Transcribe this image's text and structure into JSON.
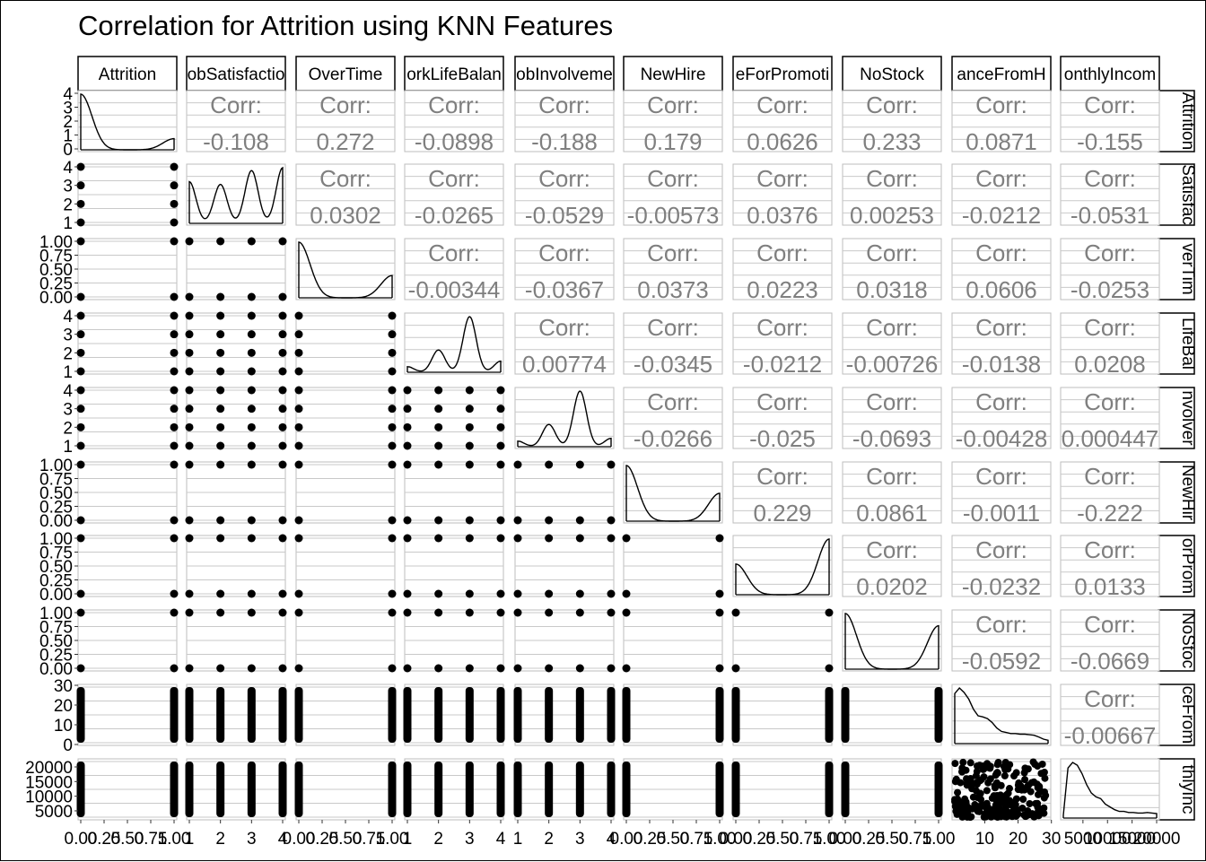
{
  "chart_data": {
    "type": "scatter",
    "title": "Correlation for Attrition using KNN Features",
    "variables": [
      "Attrition",
      "JobSatisfaction",
      "OverTime",
      "WorkLifeBalance",
      "JobInvolvement",
      "NewHire",
      "YearsSinceLastPromotion",
      "NoStock",
      "DistanceFromHome",
      "MonthlyIncome"
    ],
    "strip_labels_top": [
      "Attrition",
      "obSatisfactio",
      "OverTime",
      "orkLifeBalan",
      "obInvolveme",
      "NewHire",
      "eForPromoti",
      "NoStock",
      "anceFromH",
      "onthlyIncom"
    ],
    "strip_labels_right": [
      "Attrition",
      "Satisfac",
      "verTim",
      "LifeBal",
      "nvolver",
      "NewHir",
      "orProm",
      "NoStoc",
      "ceFrom",
      "thlyInc"
    ],
    "corr_label": "Corr:",
    "correlations": [
      {
        "row": 0,
        "col": 1,
        "value": "-0.108"
      },
      {
        "row": 0,
        "col": 2,
        "value": "0.272"
      },
      {
        "row": 0,
        "col": 3,
        "value": "-0.0898"
      },
      {
        "row": 0,
        "col": 4,
        "value": "-0.188"
      },
      {
        "row": 0,
        "col": 5,
        "value": "0.179"
      },
      {
        "row": 0,
        "col": 6,
        "value": "0.0626"
      },
      {
        "row": 0,
        "col": 7,
        "value": "0.233"
      },
      {
        "row": 0,
        "col": 8,
        "value": "0.0871"
      },
      {
        "row": 0,
        "col": 9,
        "value": "-0.155"
      },
      {
        "row": 1,
        "col": 2,
        "value": "0.0302"
      },
      {
        "row": 1,
        "col": 3,
        "value": "-0.0265"
      },
      {
        "row": 1,
        "col": 4,
        "value": "-0.0529"
      },
      {
        "row": 1,
        "col": 5,
        "value": "-0.00573"
      },
      {
        "row": 1,
        "col": 6,
        "value": "0.0376"
      },
      {
        "row": 1,
        "col": 7,
        "value": "0.00253"
      },
      {
        "row": 1,
        "col": 8,
        "value": "-0.0212"
      },
      {
        "row": 1,
        "col": 9,
        "value": "-0.0531"
      },
      {
        "row": 2,
        "col": 3,
        "value": "-0.00344"
      },
      {
        "row": 2,
        "col": 4,
        "value": "-0.0367"
      },
      {
        "row": 2,
        "col": 5,
        "value": "0.0373"
      },
      {
        "row": 2,
        "col": 6,
        "value": "0.0223"
      },
      {
        "row": 2,
        "col": 7,
        "value": "0.0318"
      },
      {
        "row": 2,
        "col": 8,
        "value": "0.0606"
      },
      {
        "row": 2,
        "col": 9,
        "value": "-0.0253"
      },
      {
        "row": 3,
        "col": 4,
        "value": "0.00774"
      },
      {
        "row": 3,
        "col": 5,
        "value": "-0.0345"
      },
      {
        "row": 3,
        "col": 6,
        "value": "-0.0212"
      },
      {
        "row": 3,
        "col": 7,
        "value": "-0.00726"
      },
      {
        "row": 3,
        "col": 8,
        "value": "-0.0138"
      },
      {
        "row": 3,
        "col": 9,
        "value": "0.0208"
      },
      {
        "row": 4,
        "col": 5,
        "value": "-0.0266"
      },
      {
        "row": 4,
        "col": 6,
        "value": "-0.025"
      },
      {
        "row": 4,
        "col": 7,
        "value": "-0.0693"
      },
      {
        "row": 4,
        "col": 8,
        "value": "-0.00428"
      },
      {
        "row": 4,
        "col": 9,
        "value": "0.000447"
      },
      {
        "row": 5,
        "col": 6,
        "value": "0.229"
      },
      {
        "row": 5,
        "col": 7,
        "value": "0.0861"
      },
      {
        "row": 5,
        "col": 8,
        "value": "-0.0011"
      },
      {
        "row": 5,
        "col": 9,
        "value": "-0.222"
      },
      {
        "row": 6,
        "col": 7,
        "value": "0.0202"
      },
      {
        "row": 6,
        "col": 8,
        "value": "-0.0232"
      },
      {
        "row": 6,
        "col": 9,
        "value": "0.0133"
      },
      {
        "row": 7,
        "col": 8,
        "value": "-0.0592"
      },
      {
        "row": 7,
        "col": 9,
        "value": "-0.0669"
      },
      {
        "row": 8,
        "col": 9,
        "value": "-0.00667"
      }
    ],
    "y_axis_ticks": [
      [
        "0",
        "1",
        "2",
        "3",
        "4"
      ],
      [
        "1",
        "2",
        "3",
        "4"
      ],
      [
        "0.00",
        "0.25",
        "0.50",
        "0.75",
        "1.00"
      ],
      [
        "1",
        "2",
        "3",
        "4"
      ],
      [
        "1",
        "2",
        "3",
        "4"
      ],
      [
        "0.00",
        "0.25",
        "0.50",
        "0.75",
        "1.00"
      ],
      [
        "0.00",
        "0.25",
        "0.50",
        "0.75",
        "1.00"
      ],
      [
        "0.00",
        "0.25",
        "0.50",
        "0.75",
        "1.00"
      ],
      [
        "0",
        "10",
        "20",
        "30"
      ],
      [
        "5000",
        "10000",
        "15000",
        "20000"
      ]
    ],
    "x_axis_ticks": [
      [
        "0.00",
        "0.25",
        "0.50",
        "0.75",
        "1.00"
      ],
      [
        "1",
        "2",
        "3",
        "4"
      ],
      [
        "0.00",
        "0.25",
        "0.50",
        "0.75",
        "1.00"
      ],
      [
        "1",
        "2",
        "3",
        "4"
      ],
      [
        "1",
        "2",
        "3",
        "4"
      ],
      [
        "0.00",
        "0.25",
        "0.50",
        "0.75",
        "1.00"
      ],
      [
        "0.00",
        "0.25",
        "0.50",
        "0.75",
        "1.00"
      ],
      [
        "0.00",
        "0.25",
        "0.50",
        "0.75",
        "1.00"
      ],
      [
        "10",
        "20",
        "30"
      ],
      [
        "5000",
        "10000",
        "15000",
        "20000"
      ]
    ],
    "variable_ranges": [
      [
        0,
        1
      ],
      [
        1,
        4
      ],
      [
        0,
        1
      ],
      [
        1,
        4
      ],
      [
        1,
        4
      ],
      [
        0,
        1
      ],
      [
        0,
        1
      ],
      [
        0,
        1
      ],
      [
        1,
        29
      ],
      [
        1009,
        19999
      ]
    ],
    "distinct_values": [
      [
        0,
        1
      ],
      [
        1,
        2,
        3,
        4
      ],
      [
        0,
        1
      ],
      [
        1,
        2,
        3,
        4
      ],
      [
        1,
        2,
        3,
        4
      ],
      [
        0,
        1
      ],
      [
        0,
        1
      ],
      [
        0,
        1
      ],
      null,
      null
    ],
    "density_peaks": [
      [
        [
          0,
          4.0
        ],
        [
          1,
          0.8
        ]
      ],
      [
        [
          1,
          3.0
        ],
        [
          2,
          2.8
        ],
        [
          3,
          3.8
        ],
        [
          4,
          4.0
        ]
      ],
      [
        [
          0,
          1.0
        ],
        [
          1,
          0.4
        ]
      ],
      [
        [
          1,
          0.1
        ],
        [
          2,
          0.4
        ],
        [
          3,
          1.0
        ],
        [
          4,
          0.2
        ]
      ],
      [
        [
          1,
          0.1
        ],
        [
          2,
          0.4
        ],
        [
          3,
          1.0
        ],
        [
          4,
          0.15
        ]
      ],
      [
        [
          0,
          1.0
        ],
        [
          1,
          0.5
        ]
      ],
      [
        [
          0,
          0.55
        ],
        [
          1,
          1.0
        ]
      ],
      [
        [
          0,
          1.0
        ],
        [
          1,
          0.78
        ]
      ],
      null,
      null
    ],
    "grid": true
  }
}
